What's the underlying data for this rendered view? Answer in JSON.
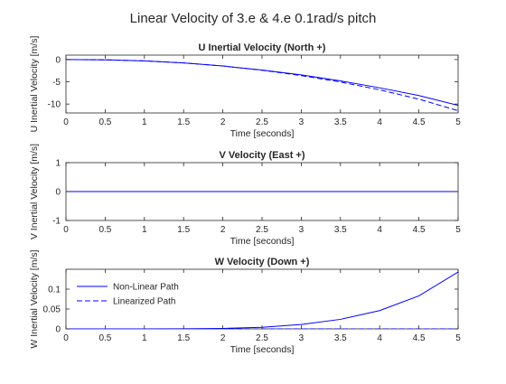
{
  "figure": {
    "title": "Linear Velocity of 3.e & 4.e 0.1rad/s pitch"
  },
  "colors": {
    "line": "#0000ff",
    "axes": "#262626",
    "background": "#ffffff"
  },
  "chart_data": [
    {
      "type": "line",
      "title": "U Inertial Velocity (North +)",
      "xlabel": "Time [seconds]",
      "ylabel": "U Inertial Velocity [m/s]",
      "xlim": [
        0,
        5
      ],
      "ylim": [
        -12,
        1
      ],
      "xticks": [
        0,
        0.5,
        1,
        1.5,
        2,
        2.5,
        3,
        3.5,
        4,
        4.5,
        5
      ],
      "xtick_labels": [
        "0",
        "0.5",
        "1",
        "1.5",
        "2",
        "2.5",
        "3",
        "3.5",
        "4",
        "4.5",
        "5"
      ],
      "yticks": [
        0,
        -5,
        -10
      ],
      "ytick_labels": [
        "0",
        "-5",
        "-10"
      ],
      "grid": false,
      "x": [
        0,
        0.5,
        1,
        1.5,
        2,
        2.5,
        3,
        3.5,
        4,
        4.5,
        5
      ],
      "series": [
        {
          "style": "solid",
          "values": [
            0,
            -0.06,
            -0.3,
            -0.75,
            -1.45,
            -2.35,
            -3.45,
            -4.8,
            -6.35,
            -8.1,
            -10.3
          ]
        },
        {
          "style": "dashed",
          "values": [
            0,
            -0.06,
            -0.3,
            -0.75,
            -1.45,
            -2.4,
            -3.6,
            -5.05,
            -6.8,
            -8.9,
            -11.5
          ]
        }
      ]
    },
    {
      "type": "line",
      "title": "V Velocity (East +)",
      "xlabel": "Time [seconds]",
      "ylabel": "V Inertial Velocity [m/s]",
      "xlim": [
        0,
        5
      ],
      "ylim": [
        -1,
        1
      ],
      "xticks": [
        0,
        0.5,
        1,
        1.5,
        2,
        2.5,
        3,
        3.5,
        4,
        4.5,
        5
      ],
      "xtick_labels": [
        "0",
        "0.5",
        "1",
        "1.5",
        "2",
        "2.5",
        "3",
        "3.5",
        "4",
        "4.5",
        "5"
      ],
      "yticks": [
        1,
        0,
        -1
      ],
      "ytick_labels": [
        "1",
        "0",
        "-1"
      ],
      "grid": false,
      "x": [
        0,
        5
      ],
      "series": [
        {
          "style": "solid",
          "values": [
            0,
            0
          ]
        },
        {
          "style": "dashed",
          "values": [
            0,
            0
          ]
        }
      ]
    },
    {
      "type": "line",
      "title": "W Velocity (Down +)",
      "xlabel": "Time [seconds]",
      "ylabel": "W Inertial Velocity [m/s]",
      "xlim": [
        0,
        5
      ],
      "ylim": [
        0,
        0.15
      ],
      "xticks": [
        0,
        0.5,
        1,
        1.5,
        2,
        2.5,
        3,
        3.5,
        4,
        4.5,
        5
      ],
      "xtick_labels": [
        "0",
        "0.5",
        "1",
        "1.5",
        "2",
        "2.5",
        "3",
        "3.5",
        "4",
        "4.5",
        "5"
      ],
      "yticks": [
        0,
        0.05,
        0.1
      ],
      "ytick_labels": [
        "0",
        "0.05",
        "0.1"
      ],
      "grid": false,
      "legend": {
        "location": "left",
        "entries": [
          "Non-Linear Path",
          "Linearized Path"
        ]
      },
      "x": [
        0,
        0.5,
        1,
        1.5,
        2,
        2.5,
        3,
        3.5,
        4,
        4.5,
        5
      ],
      "series": [
        {
          "name": "Non-Linear Path",
          "style": "solid",
          "values": [
            0,
            0,
            0,
            0.0002,
            0.0012,
            0.004,
            0.011,
            0.024,
            0.046,
            0.083,
            0.143
          ]
        },
        {
          "name": "Linearized Path",
          "style": "dashed",
          "values": [
            0,
            0,
            0,
            0,
            0,
            0,
            0,
            0,
            0,
            0,
            0
          ]
        }
      ]
    }
  ]
}
